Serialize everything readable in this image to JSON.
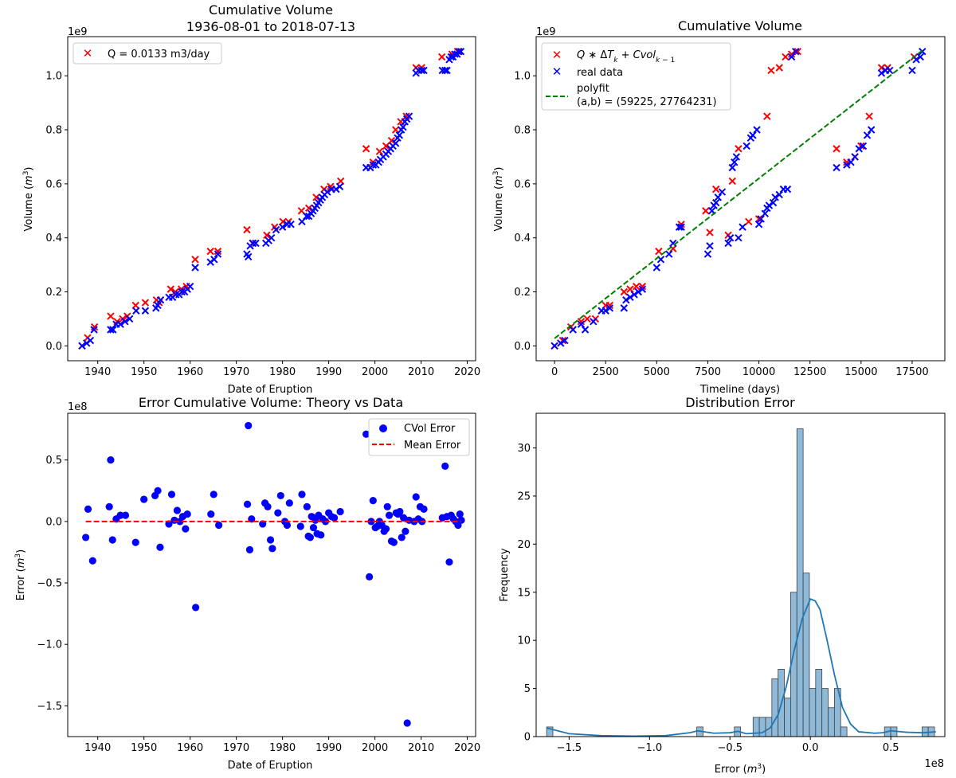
{
  "figure": {
    "background": "#ffffff"
  },
  "chart_data": [
    {
      "id": "cumvol_date",
      "type": "scatter",
      "title": "Cumulative Volume",
      "subtitle": "1936-08-01 to 2018-07-13",
      "xlabel": "Date of Eruption",
      "ylabel": "Volume (m³)",
      "y_offset_label": "1e9",
      "xlim": [
        1933.5,
        2021.8
      ],
      "ylim": [
        -0.055,
        1.145
      ],
      "xticks": [
        1940,
        1950,
        1960,
        1970,
        1980,
        1990,
        2000,
        2010,
        2020
      ],
      "xtick_labels": [
        "1940",
        "1950",
        "1960",
        "1970",
        "1980",
        "1990",
        "2000",
        "2010",
        "2020"
      ],
      "yticks": [
        0.0,
        0.2,
        0.4,
        0.6,
        0.8,
        1.0
      ],
      "ytick_labels": [
        "0.0",
        "0.2",
        "0.4",
        "0.6",
        "0.8",
        "1.0"
      ],
      "legend": {
        "placement": "upper left",
        "entries": [
          "Q = 0.0133 m3/day"
        ]
      },
      "series": [
        {
          "name": "Q = 0.0133 m3/day",
          "marker": "x",
          "color": "#ff0000",
          "x": [
            1936.6,
            1937.8,
            1939.3,
            1942.8,
            1944.2,
            1945.4,
            1946.4,
            1948.2,
            1950.3,
            1952.7,
            1953.3,
            1955.8,
            1956.8,
            1958.1,
            1959.2,
            1961.1,
            1964.4,
            1966.0,
            1972.3,
            1973.5,
            1976.6,
            1978.3,
            1980.1,
            1981.3,
            1984.1,
            1985.7,
            1987.3,
            1989.0,
            1990.4,
            1992.6,
            1998.1,
            1999.6,
            2001.0,
            2002.4,
            2003.6,
            2004.5,
            2005.6,
            2006.8,
            2008.9,
            2010.1,
            2014.5,
            2016.7,
            2017.9
          ],
          "y": [
            0.0,
            0.03,
            0.07,
            0.11,
            0.09,
            0.1,
            0.11,
            0.15,
            0.16,
            0.17,
            0.16,
            0.21,
            0.2,
            0.21,
            0.22,
            0.32,
            0.35,
            0.35,
            0.43,
            0.38,
            0.41,
            0.44,
            0.46,
            0.46,
            0.5,
            0.51,
            0.55,
            0.58,
            0.59,
            0.61,
            0.73,
            0.68,
            0.72,
            0.74,
            0.76,
            0.8,
            0.83,
            0.85,
            1.03,
            1.03,
            1.07,
            1.08,
            1.09
          ]
        },
        {
          "name": "real data",
          "marker": "x",
          "color": "#0000ff",
          "x": [
            1936.6,
            1937.6,
            1938.4,
            1939.2,
            1942.8,
            1943.3,
            1944.0,
            1944.9,
            1945.9,
            1946.9,
            1948.3,
            1950.3,
            1952.6,
            1953.0,
            1953.6,
            1955.4,
            1956.2,
            1956.9,
            1957.6,
            1958.2,
            1958.8,
            1959.4,
            1960.0,
            1961.1,
            1964.4,
            1965.2,
            1966.0,
            1972.3,
            1972.6,
            1973.0,
            1973.6,
            1974.2,
            1976.4,
            1977.0,
            1977.6,
            1978.6,
            1980.0,
            1981.0,
            1981.8,
            1984.2,
            1985.2,
            1985.7,
            1986.2,
            1986.6,
            1987.0,
            1987.4,
            1987.8,
            1988.2,
            1988.6,
            1989.1,
            1989.7,
            1990.6,
            1991.6,
            1992.4,
            1998.1,
            1999.0,
            1999.6,
            2000.2,
            2000.8,
            2001.2,
            2001.8,
            2002.4,
            2002.9,
            2003.4,
            2003.9,
            2004.5,
            2004.9,
            2005.3,
            2005.7,
            2006.1,
            2006.5,
            2006.9,
            2007.4,
            2008.9,
            2009.4,
            2010.1,
            2010.6,
            2014.6,
            2015.2,
            2015.6,
            2016.1,
            2016.5,
            2016.9,
            2017.3,
            2017.8,
            2018.2,
            2018.6
          ],
          "y": [
            0.0,
            0.01,
            0.02,
            0.06,
            0.06,
            0.06,
            0.08,
            0.08,
            0.09,
            0.1,
            0.13,
            0.13,
            0.14,
            0.15,
            0.17,
            0.18,
            0.18,
            0.19,
            0.19,
            0.2,
            0.2,
            0.21,
            0.22,
            0.29,
            0.31,
            0.32,
            0.34,
            0.34,
            0.33,
            0.37,
            0.38,
            0.38,
            0.38,
            0.39,
            0.4,
            0.43,
            0.44,
            0.45,
            0.45,
            0.46,
            0.48,
            0.48,
            0.49,
            0.5,
            0.51,
            0.52,
            0.53,
            0.54,
            0.55,
            0.56,
            0.57,
            0.58,
            0.58,
            0.59,
            0.66,
            0.66,
            0.67,
            0.67,
            0.68,
            0.69,
            0.7,
            0.71,
            0.72,
            0.73,
            0.74,
            0.75,
            0.77,
            0.78,
            0.8,
            0.81,
            0.83,
            0.84,
            0.85,
            1.01,
            1.02,
            1.02,
            1.02,
            1.02,
            1.02,
            1.02,
            1.06,
            1.07,
            1.07,
            1.08,
            1.08,
            1.09,
            1.09
          ]
        }
      ]
    },
    {
      "id": "cumvol_timeline",
      "type": "scatter",
      "title": "Cumulative Volume",
      "xlabel": "Timeline (days)",
      "ylabel": "Volume (m³)",
      "y_offset_label": "1e9",
      "xlim": [
        -900,
        19100
      ],
      "ylim": [
        -0.055,
        1.145
      ],
      "xticks": [
        0,
        2500,
        5000,
        7500,
        10000,
        12500,
        15000,
        17500
      ],
      "xtick_labels": [
        "0",
        "2500",
        "5000",
        "7500",
        "10000",
        "12500",
        "15000",
        "17500"
      ],
      "yticks": [
        0.0,
        0.2,
        0.4,
        0.6,
        0.8,
        1.0
      ],
      "ytick_labels": [
        "0.0",
        "0.2",
        "0.4",
        "0.6",
        "0.8",
        "1.0"
      ],
      "legend": {
        "placement": "upper left",
        "entries": [
          "Q∗ΔTk+Cvolk−1",
          "real data",
          "polyfit",
          "(a,b) = (59225, 27764231)"
        ]
      },
      "series": [
        {
          "name": "Q∗ΔTk+Cvolk−1",
          "marker": "x",
          "color": "#ff0000",
          "x": [
            0,
            400,
            800,
            1300,
            1600,
            2000,
            2500,
            2700,
            3400,
            3700,
            4000,
            4300,
            5100,
            5800,
            6200,
            7400,
            7600,
            7900,
            8500,
            8700,
            9000,
            9500,
            10000,
            10400,
            10600,
            11000,
            11300,
            11600,
            11900,
            13800,
            14300,
            14700,
            15000,
            15400,
            16000,
            16300,
            17600
          ],
          "y": [
            0.0,
            0.02,
            0.07,
            0.09,
            0.1,
            0.1,
            0.15,
            0.15,
            0.2,
            0.21,
            0.22,
            0.22,
            0.35,
            0.36,
            0.45,
            0.5,
            0.42,
            0.58,
            0.41,
            0.61,
            0.73,
            0.46,
            0.47,
            0.85,
            1.02,
            1.03,
            1.07,
            1.08,
            1.09,
            0.73,
            0.68,
            0.7,
            0.74,
            0.85,
            1.03,
            1.03,
            1.07
          ]
        },
        {
          "name": "real data",
          "marker": "x",
          "color": "#0000ff",
          "x": [
            0,
            300,
            500,
            900,
            1300,
            1500,
            1900,
            2300,
            2500,
            2700,
            3400,
            3500,
            3700,
            3900,
            4100,
            4300,
            5000,
            5200,
            5600,
            5800,
            6100,
            6200,
            7500,
            7600,
            7700,
            7800,
            7900,
            8000,
            8200,
            8500,
            8600,
            8700,
            8800,
            8900,
            9000,
            9200,
            9400,
            9600,
            9700,
            9900,
            10000,
            10100,
            10300,
            10400,
            10500,
            10700,
            10800,
            11000,
            11200,
            11400,
            11600,
            11800,
            13800,
            14300,
            14500,
            14700,
            14900,
            15100,
            15300,
            15500,
            16000,
            16200,
            16400,
            17500,
            17700,
            17900,
            18000
          ],
          "y": [
            0.0,
            0.01,
            0.02,
            0.06,
            0.08,
            0.06,
            0.09,
            0.13,
            0.13,
            0.14,
            0.14,
            0.17,
            0.18,
            0.19,
            0.2,
            0.21,
            0.29,
            0.32,
            0.34,
            0.38,
            0.44,
            0.44,
            0.34,
            0.37,
            0.5,
            0.52,
            0.53,
            0.55,
            0.57,
            0.38,
            0.4,
            0.66,
            0.68,
            0.7,
            0.4,
            0.44,
            0.74,
            0.77,
            0.78,
            0.8,
            0.45,
            0.47,
            0.49,
            0.51,
            0.52,
            0.53,
            0.55,
            0.56,
            0.58,
            0.58,
            1.07,
            1.09,
            0.66,
            0.67,
            0.68,
            0.7,
            0.73,
            0.74,
            0.78,
            0.8,
            1.01,
            1.02,
            1.02,
            1.02,
            1.06,
            1.07,
            1.09
          ]
        },
        {
          "name": "polyfit",
          "marker": "dashed-line",
          "color": "#008000",
          "x": [
            0,
            18000
          ],
          "y": [
            0.0278,
            1.0938
          ]
        }
      ]
    },
    {
      "id": "error_date",
      "type": "scatter",
      "title": "Error Cumulative Volume: Theory vs Data",
      "xlabel": "Date of Eruption",
      "ylabel": "Error (m³)",
      "y_offset_label": "1e8",
      "xlim": [
        1933.5,
        2021.8
      ],
      "ylim": [
        -1.75,
        0.88
      ],
      "xticks": [
        1940,
        1950,
        1960,
        1970,
        1980,
        1990,
        2000,
        2010,
        2020
      ],
      "xtick_labels": [
        "1940",
        "1950",
        "1960",
        "1970",
        "1980",
        "1990",
        "2000",
        "2010",
        "2020"
      ],
      "yticks": [
        -1.5,
        -1.0,
        -0.5,
        0.0,
        0.5
      ],
      "ytick_labels": [
        "−1.5",
        "−1.0",
        "−0.5",
        "0.0",
        "0.5"
      ],
      "legend": {
        "placement": "upper right",
        "entries": [
          "CVol Error",
          "Mean Error"
        ]
      },
      "series": [
        {
          "name": "CVol Error",
          "marker": "o",
          "color": "#0000ff",
          "x": [
            1937.4,
            1937.9,
            1938.9,
            1942.5,
            1942.8,
            1943.2,
            1944.0,
            1944.9,
            1946.0,
            1948.2,
            1950.0,
            1952.4,
            1953.0,
            1953.5,
            1955.4,
            1956.0,
            1956.6,
            1957.2,
            1957.8,
            1958.4,
            1959.0,
            1959.4,
            1961.2,
            1964.5,
            1965.1,
            1966.2,
            1972.4,
            1972.6,
            1972.9,
            1973.3,
            1975.7,
            1976.2,
            1976.8,
            1977.4,
            1977.8,
            1979.0,
            1979.6,
            1980.5,
            1981.0,
            1981.5,
            1983.9,
            1984.2,
            1985.3,
            1985.6,
            1986.0,
            1986.3,
            1986.7,
            1987.1,
            1987.5,
            1987.8,
            1988.3,
            1988.7,
            1989.3,
            1990.0,
            1990.6,
            1991.2,
            1992.5,
            1998.1,
            1998.8,
            1999.2,
            1999.6,
            2000.1,
            2000.5,
            2001.0,
            2001.5,
            2002.0,
            2002.4,
            2002.7,
            2003.1,
            2003.6,
            2004.1,
            2004.6,
            2005.0,
            2005.4,
            2005.8,
            2006.2,
            2006.6,
            2007.0,
            2007.4,
            2008.5,
            2008.9,
            2009.4,
            2009.8,
            2010.2,
            2010.6,
            2014.6,
            2015.2,
            2015.6,
            2016.1,
            2016.5,
            2017.0,
            2017.5,
            2018.0,
            2018.4,
            2018.7
          ],
          "y": [
            -0.13,
            0.1,
            -0.32,
            0.12,
            0.5,
            -0.15,
            0.02,
            0.05,
            0.05,
            -0.17,
            0.18,
            0.21,
            0.25,
            -0.21,
            -0.02,
            0.22,
            0.01,
            0.09,
            0.0,
            0.04,
            -0.06,
            0.06,
            -0.7,
            0.06,
            0.22,
            -0.03,
            0.14,
            0.78,
            -0.23,
            0.02,
            -0.02,
            0.15,
            0.12,
            -0.15,
            -0.22,
            0.07,
            0.21,
            0.0,
            -0.03,
            0.15,
            -0.04,
            0.22,
            0.12,
            -0.12,
            -0.13,
            0.04,
            -0.05,
            0.01,
            -0.1,
            0.05,
            -0.11,
            0.02,
            0.0,
            0.07,
            0.04,
            0.03,
            0.08,
            0.71,
            -0.45,
            0.0,
            0.17,
            -0.05,
            -0.04,
            0.0,
            -0.03,
            -0.08,
            -0.06,
            0.12,
            0.05,
            -0.16,
            -0.17,
            0.07,
            0.06,
            0.08,
            -0.13,
            0.03,
            -0.08,
            -1.64,
            0.01,
            0.0,
            0.2,
            0.02,
            0.12,
            0.0,
            0.1,
            0.03,
            0.45,
            0.04,
            -0.33,
            0.05,
            0.02,
            0.0,
            -0.03,
            0.06,
            0.01
          ]
        },
        {
          "name": "Mean Error",
          "marker": "dashed-line",
          "color": "#ff0000",
          "x": [
            1937.4,
            2018.7
          ],
          "y": [
            0.0,
            0.0
          ]
        }
      ]
    },
    {
      "id": "error_distribution",
      "type": "bar",
      "title": "Distribution Error",
      "xlabel": "Error (m³)",
      "ylabel": "Frequency",
      "x_offset_label": "1e8",
      "xlim": [
        -1.705,
        0.836
      ],
      "ylim": [
        0,
        33.6
      ],
      "xticks": [
        -1.5,
        -1.0,
        -0.5,
        0.0,
        0.5
      ],
      "xtick_labels": [
        "−1.5",
        "−1.0",
        "−0.5",
        "0.0",
        "0.5"
      ],
      "yticks": [
        0,
        5,
        10,
        15,
        20,
        25,
        30
      ],
      "ytick_labels": [
        "0",
        "5",
        "10",
        "15",
        "20",
        "25",
        "30"
      ],
      "bin_start": -1.64,
      "bin_width": 0.0389,
      "bar_color": "#1f77b4",
      "bar_fill": "#8fb9d9",
      "values": [
        1,
        0,
        0,
        0,
        0,
        0,
        0,
        0,
        0,
        0,
        0,
        0,
        0,
        0,
        0,
        0,
        0,
        0,
        0,
        0,
        0,
        0,
        0,
        0,
        1,
        0,
        0,
        0,
        0,
        0,
        1,
        0,
        0,
        2,
        2,
        2,
        6,
        7,
        4,
        15,
        32,
        17,
        5,
        7,
        5,
        3,
        5,
        1,
        0,
        0,
        0,
        0,
        0,
        0,
        1,
        1,
        0,
        0,
        0,
        0,
        1,
        1
      ],
      "kde": {
        "x": [
          -1.64,
          -1.5,
          -1.3,
          -1.1,
          -0.9,
          -0.75,
          -0.7,
          -0.6,
          -0.5,
          -0.45,
          -0.4,
          -0.3,
          -0.25,
          -0.2,
          -0.15,
          -0.1,
          -0.05,
          0.0,
          0.03,
          0.06,
          0.1,
          0.15,
          0.2,
          0.25,
          0.3,
          0.4,
          0.45,
          0.5,
          0.6,
          0.7,
          0.78
        ],
        "y": [
          0.9,
          0.3,
          0.1,
          0.05,
          0.1,
          0.4,
          0.6,
          0.35,
          0.4,
          0.55,
          0.3,
          0.4,
          0.9,
          2.3,
          5.2,
          9.0,
          12.3,
          14.3,
          14.1,
          13.2,
          10.3,
          6.4,
          3.0,
          1.3,
          0.5,
          0.35,
          0.4,
          0.6,
          0.45,
          0.4,
          0.5
        ]
      }
    }
  ]
}
